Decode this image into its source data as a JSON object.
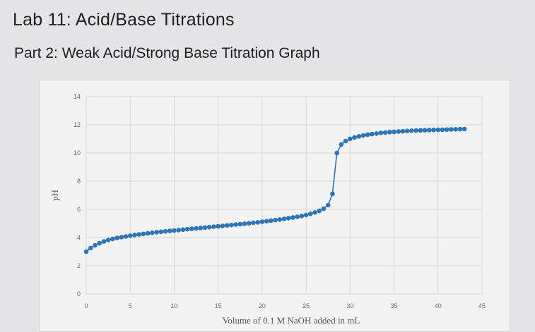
{
  "header": {
    "title": "Lab 11: Acid/Base Titrations",
    "subtitle": "Part 2: Weak Acid/Strong Base Titration Graph"
  },
  "chart_data": {
    "type": "line",
    "title": "",
    "xlabel": "Volume of 0.1 M NaOH added in mL",
    "ylabel": "pH",
    "xlim": [
      0,
      45
    ],
    "ylim": [
      0,
      14
    ],
    "xticks": [
      0,
      5,
      10,
      15,
      20,
      25,
      30,
      35,
      40,
      45
    ],
    "yticks": [
      0,
      2,
      4,
      6,
      8,
      10,
      12,
      14
    ],
    "grid": true,
    "legend": "none",
    "colors": {
      "series": "#2e75b6",
      "grid": "#d6d6d6",
      "background": "#f3f3f4"
    },
    "series": [
      {
        "marker": "circle",
        "x": [
          0.0,
          0.5,
          1.0,
          1.5,
          2.0,
          2.5,
          3.0,
          3.5,
          4.0,
          4.5,
          5.0,
          5.5,
          6.0,
          6.5,
          7.0,
          7.5,
          8.0,
          8.5,
          9.0,
          9.5,
          10.0,
          10.5,
          11.0,
          11.5,
          12.0,
          12.5,
          13.0,
          13.5,
          14.0,
          14.5,
          15.0,
          15.5,
          16.0,
          16.5,
          17.0,
          17.5,
          18.0,
          18.5,
          19.0,
          19.5,
          20.0,
          20.5,
          21.0,
          21.5,
          22.0,
          22.5,
          23.0,
          23.5,
          24.0,
          24.5,
          25.0,
          25.5,
          26.0,
          26.5,
          27.0,
          27.5,
          28.0,
          28.5,
          29.0,
          29.5,
          30.0,
          30.5,
          31.0,
          31.5,
          32.0,
          32.5,
          33.0,
          33.5,
          34.0,
          34.5,
          35.0,
          35.5,
          36.0,
          36.5,
          37.0,
          37.5,
          38.0,
          38.5,
          39.0,
          39.5,
          40.0,
          40.5,
          41.0,
          41.5,
          42.0,
          42.5,
          43.0
        ],
        "y": [
          3.0,
          3.25,
          3.45,
          3.6,
          3.72,
          3.82,
          3.9,
          3.97,
          4.03,
          4.08,
          4.13,
          4.18,
          4.22,
          4.26,
          4.3,
          4.34,
          4.38,
          4.41,
          4.44,
          4.47,
          4.5,
          4.53,
          4.56,
          4.59,
          4.62,
          4.65,
          4.68,
          4.71,
          4.74,
          4.77,
          4.8,
          4.83,
          4.86,
          4.89,
          4.92,
          4.95,
          4.98,
          5.01,
          5.05,
          5.08,
          5.12,
          5.16,
          5.2,
          5.24,
          5.28,
          5.32,
          5.37,
          5.42,
          5.47,
          5.53,
          5.6,
          5.68,
          5.78,
          5.9,
          6.05,
          6.3,
          7.1,
          10.0,
          10.6,
          10.85,
          11.0,
          11.1,
          11.18,
          11.24,
          11.3,
          11.34,
          11.38,
          11.42,
          11.45,
          11.48,
          11.5,
          11.52,
          11.54,
          11.56,
          11.58,
          11.59,
          11.6,
          11.61,
          11.62,
          11.63,
          11.64,
          11.65,
          11.66,
          11.67,
          11.68,
          11.69,
          11.7
        ]
      }
    ]
  }
}
